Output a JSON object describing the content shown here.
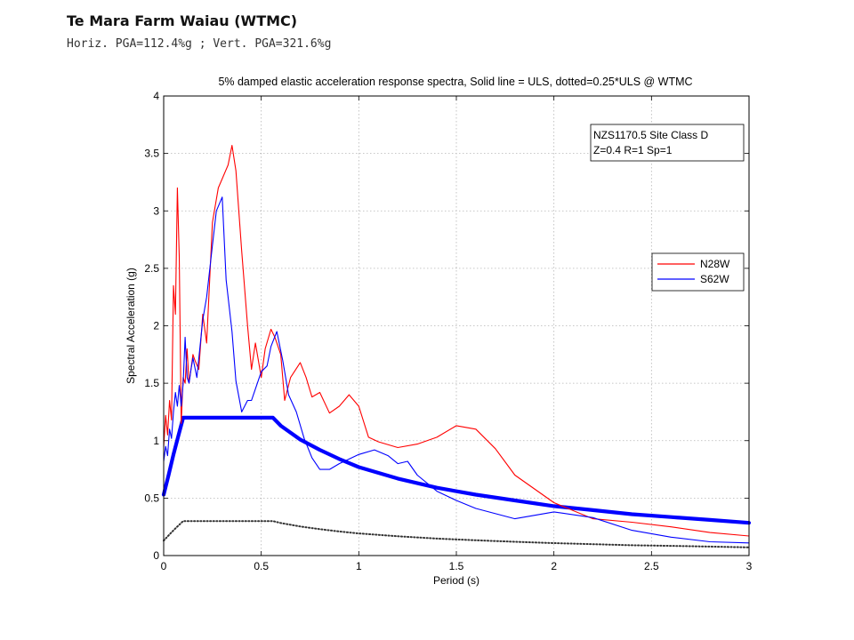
{
  "page": {
    "heading": "Te Mara Farm Waiau (WTMC)",
    "subheading": "Horiz. PGA=112.4%g ; Vert. PGA=321.6%g"
  },
  "chart_data": {
    "type": "line",
    "title": "5% damped elastic acceleration response spectra, Solid line = ULS, dotted=0.25*ULS @ WTMC",
    "xlabel": "Period (s)",
    "ylabel": "Spectral Acceleration (g)",
    "xlim": [
      0,
      3
    ],
    "ylim": [
      0,
      4
    ],
    "xticks": [
      0,
      0.5,
      1,
      1.5,
      2,
      2.5,
      3
    ],
    "xtick_labels": [
      "0",
      "0.5",
      "1",
      "1.5",
      "2",
      "2.5",
      "3"
    ],
    "yticks": [
      0,
      0.5,
      1,
      1.5,
      2,
      2.5,
      3,
      3.5,
      4
    ],
    "ytick_labels": [
      "0",
      "0.5",
      "1",
      "1.5",
      "2",
      "2.5",
      "3",
      "3.5",
      "4"
    ],
    "grid": true,
    "legend_position": "right",
    "annotation": [
      "NZS1170.5 Site Class D",
      "Z=0.4 R=1 Sp=1"
    ],
    "series": [
      {
        "name": "N28W",
        "color": "#ff0000",
        "style": "solid",
        "in_legend": true,
        "x": [
          0,
          0.01,
          0.02,
          0.03,
          0.04,
          0.05,
          0.06,
          0.07,
          0.08,
          0.09,
          0.1,
          0.11,
          0.12,
          0.13,
          0.14,
          0.15,
          0.16,
          0.18,
          0.2,
          0.22,
          0.25,
          0.28,
          0.3,
          0.33,
          0.35,
          0.37,
          0.4,
          0.43,
          0.45,
          0.47,
          0.5,
          0.52,
          0.55,
          0.57,
          0.6,
          0.62,
          0.65,
          0.7,
          0.73,
          0.76,
          0.8,
          0.85,
          0.9,
          0.95,
          1.0,
          1.05,
          1.1,
          1.2,
          1.3,
          1.4,
          1.5,
          1.6,
          1.7,
          1.8,
          2.0,
          2.2,
          2.4,
          2.6,
          2.8,
          3.0
        ],
        "y": [
          0.95,
          1.22,
          1.05,
          1.35,
          1.18,
          2.35,
          2.1,
          3.2,
          2.6,
          1.15,
          1.55,
          1.5,
          1.8,
          1.5,
          1.62,
          1.75,
          1.7,
          1.62,
          2.1,
          1.85,
          2.9,
          3.2,
          3.28,
          3.4,
          3.57,
          3.35,
          2.65,
          2.0,
          1.62,
          1.85,
          1.55,
          1.8,
          1.97,
          1.9,
          1.75,
          1.35,
          1.55,
          1.68,
          1.55,
          1.38,
          1.42,
          1.24,
          1.3,
          1.4,
          1.3,
          1.03,
          0.99,
          0.94,
          0.97,
          1.03,
          1.13,
          1.1,
          0.93,
          0.7,
          0.46,
          0.32,
          0.29,
          0.25,
          0.2,
          0.17
        ]
      },
      {
        "name": "S62W",
        "color": "#0000ff",
        "style": "solid",
        "in_legend": true,
        "x": [
          0,
          0.01,
          0.02,
          0.03,
          0.04,
          0.05,
          0.06,
          0.07,
          0.08,
          0.09,
          0.1,
          0.11,
          0.12,
          0.13,
          0.14,
          0.15,
          0.17,
          0.2,
          0.22,
          0.25,
          0.27,
          0.3,
          0.32,
          0.35,
          0.37,
          0.4,
          0.43,
          0.45,
          0.47,
          0.5,
          0.53,
          0.55,
          0.58,
          0.61,
          0.64,
          0.68,
          0.72,
          0.76,
          0.8,
          0.85,
          0.9,
          1.0,
          1.08,
          1.15,
          1.2,
          1.25,
          1.3,
          1.4,
          1.5,
          1.6,
          1.8,
          2.0,
          2.2,
          2.4,
          2.6,
          2.8,
          3.0
        ],
        "y": [
          0.82,
          0.95,
          0.87,
          1.1,
          1.02,
          1.25,
          1.42,
          1.3,
          1.48,
          1.3,
          1.5,
          1.9,
          1.55,
          1.5,
          1.62,
          1.72,
          1.55,
          2.05,
          2.25,
          2.7,
          3.0,
          3.12,
          2.4,
          1.95,
          1.52,
          1.25,
          1.35,
          1.35,
          1.45,
          1.6,
          1.65,
          1.82,
          1.95,
          1.7,
          1.4,
          1.25,
          1.02,
          0.85,
          0.75,
          0.75,
          0.8,
          0.88,
          0.92,
          0.87,
          0.8,
          0.82,
          0.7,
          0.56,
          0.48,
          0.41,
          0.32,
          0.38,
          0.33,
          0.22,
          0.16,
          0.12,
          0.11
        ]
      },
      {
        "name": "ULS",
        "color": "#0000ff",
        "style": "solid-thick",
        "in_legend": false,
        "x": [
          0,
          0.025,
          0.05,
          0.075,
          0.1,
          0.56,
          0.6,
          0.7,
          0.8,
          0.9,
          1.0,
          1.2,
          1.4,
          1.6,
          1.8,
          2.0,
          2.2,
          2.4,
          2.6,
          2.8,
          3.0
        ],
        "y": [
          0.53,
          0.7,
          0.88,
          1.04,
          1.2,
          1.2,
          1.13,
          1.01,
          0.92,
          0.84,
          0.77,
          0.67,
          0.59,
          0.53,
          0.48,
          0.43,
          0.395,
          0.36,
          0.335,
          0.31,
          0.285
        ]
      },
      {
        "name": "0.25*ULS",
        "color": "#333333",
        "style": "dotted",
        "in_legend": false,
        "x": [
          0,
          0.025,
          0.05,
          0.075,
          0.1,
          0.56,
          0.6,
          0.7,
          0.8,
          0.9,
          1.0,
          1.2,
          1.4,
          1.6,
          1.8,
          2.0,
          2.2,
          2.4,
          2.6,
          2.8,
          3.0
        ],
        "y": [
          0.13,
          0.175,
          0.22,
          0.26,
          0.3,
          0.3,
          0.283,
          0.253,
          0.23,
          0.21,
          0.193,
          0.168,
          0.148,
          0.133,
          0.12,
          0.108,
          0.099,
          0.09,
          0.084,
          0.078,
          0.071
        ]
      }
    ]
  }
}
